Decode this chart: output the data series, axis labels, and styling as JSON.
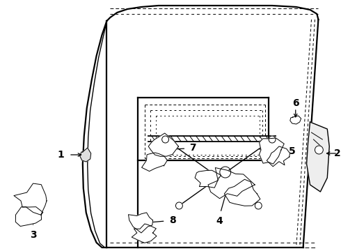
{
  "bg_color": "#ffffff",
  "line_color": "#000000",
  "fig_width": 4.9,
  "fig_height": 3.6,
  "dpi": 100,
  "lw_thick": 1.6,
  "lw_med": 1.0,
  "lw_thin": 0.7
}
